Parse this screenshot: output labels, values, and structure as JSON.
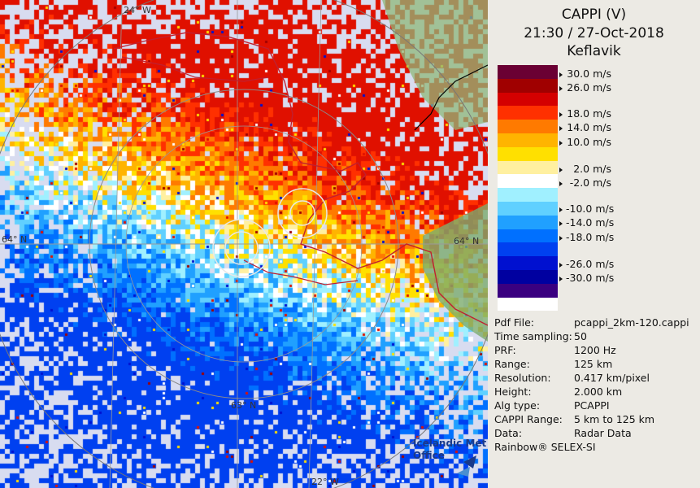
{
  "header": {
    "product": "CAPPI (V)",
    "datetime": "21:30 / 27-Oct-2018",
    "site": "Keflavik"
  },
  "legend": {
    "unit_labels": [
      "30.0 m/s",
      "26.0 m/s",
      "18.0 m/s",
      "14.0 m/s",
      "10.0 m/s",
      "2.0 m/s",
      "-2.0 m/s",
      "-10.0 m/s",
      "-14.0 m/s",
      "-18.0 m/s",
      "-26.0 m/s",
      "-30.0 m/s"
    ],
    "colors": [
      "#6a0033",
      "#a00000",
      "#d40000",
      "#ff3000",
      "#ff7a00",
      "#ffb400",
      "#ffe000",
      "#fff0a0",
      "#ffffff",
      "#a0f0ff",
      "#60d0ff",
      "#20a0ff",
      "#0070ff",
      "#0040f0",
      "#0010d0",
      "#0000a0",
      "#3a0080",
      "#ffffff"
    ]
  },
  "info": [
    {
      "key": "Pdf File:",
      "value": "pcappi_2km-120.cappi"
    },
    {
      "key": "Time sampling:",
      "value": "50"
    },
    {
      "key": "PRF:",
      "value": "1200 Hz"
    },
    {
      "key": "Range:",
      "value": "125 km"
    },
    {
      "key": "Resolution:",
      "value": "0.417 km/pixel"
    },
    {
      "key": "Height:",
      "value": "2.000 km"
    },
    {
      "key": "Alg type:",
      "value": "PCAPPI"
    },
    {
      "key": "CAPPI Range:",
      "value": "5 km to 125 km"
    },
    {
      "key": "Data:",
      "value": "Radar Data"
    }
  ],
  "footer": "Rainbow® SELEX-SI",
  "map": {
    "coord_labels": {
      "lon_top": "24° W",
      "lon_bottom": "22° W",
      "lat_left": "64° N",
      "lat_right": "64° N",
      "lat_bottom": "63° N"
    },
    "logo_line1": "Icelandic Met",
    "logo_line2": "Office"
  }
}
